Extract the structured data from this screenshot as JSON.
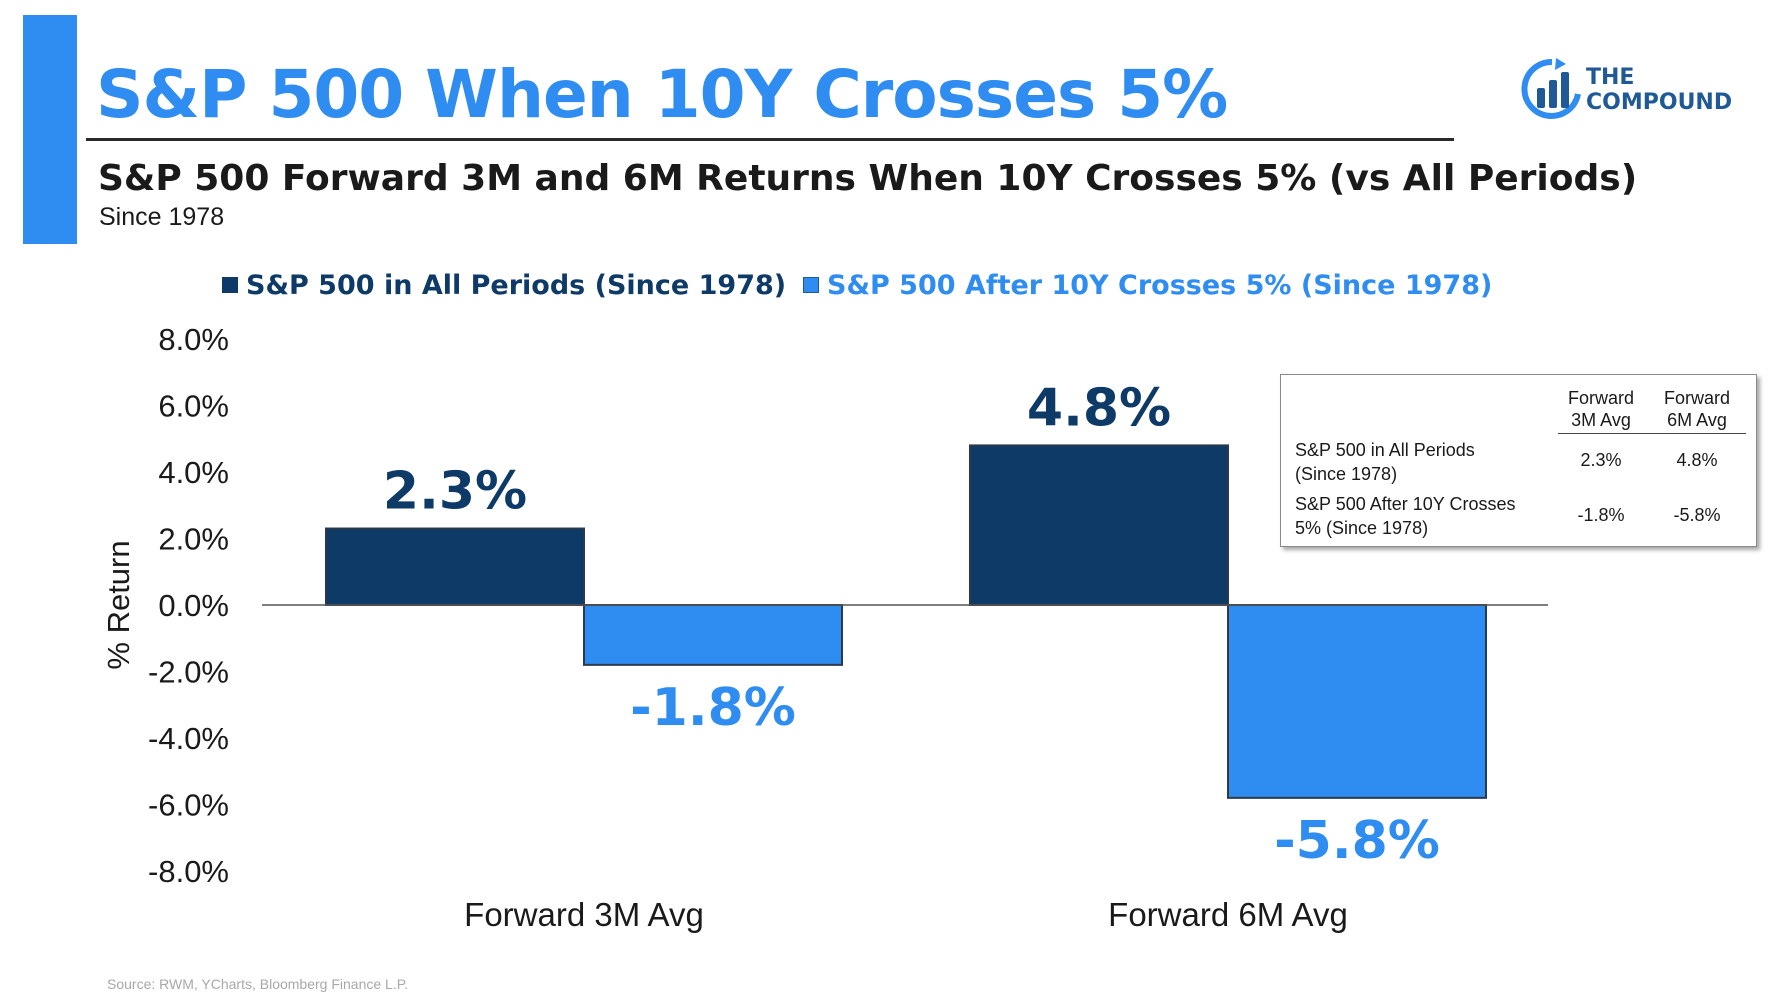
{
  "header": {
    "title": "S&P 500 When 10Y Crosses 5%",
    "subtitle": "S&P 500 Forward 3M and 6M Returns When 10Y Crosses 5% (vs All Periods)",
    "since": "Since 1978"
  },
  "logo": {
    "line1": "THE",
    "line2": "COMPOUND",
    "icon": "bar-chart-circle-icon"
  },
  "colors": {
    "accent": "#2f8cf0",
    "dark_series": "#0d3a66",
    "light_series": "#2f8cf0"
  },
  "legend": {
    "all_periods": "S&P 500 in All Periods (Since 1978)",
    "after_cross": "S&P 500 After 10Y Crosses 5% (Since 1978)"
  },
  "chart_data": {
    "type": "bar",
    "categories": [
      "Forward 3M Avg",
      "Forward 6M Avg"
    ],
    "series": [
      {
        "name": "S&P 500 in All Periods (Since 1978)",
        "values": [
          2.3,
          4.8
        ],
        "labels": [
          "2.3%",
          "4.8%"
        ],
        "color": "#0d3a66"
      },
      {
        "name": "S&P 500 After 10Y Crosses 5% (Since 1978)",
        "values": [
          -1.8,
          -5.8
        ],
        "labels": [
          "-1.8%",
          "-5.8%"
        ],
        "color": "#2f8cf0"
      }
    ],
    "ylabel": "% Return",
    "xlabel": "",
    "ylim": [
      -8,
      8
    ],
    "yticks": [
      "8.0%",
      "6.0%",
      "4.0%",
      "2.0%",
      "0.0%",
      "-2.0%",
      "-4.0%",
      "-6.0%",
      "-8.0%"
    ],
    "ytick_values": [
      8,
      6,
      4,
      2,
      0,
      -2,
      -4,
      -6,
      -8
    ],
    "grid": false,
    "legend_position": "top"
  },
  "table": {
    "headers": [
      "Forward\n3M Avg",
      "Forward\n6M Avg"
    ],
    "rows": [
      {
        "label": "S&P 500 in All Periods\n(Since 1978)",
        "values": [
          "2.3%",
          "4.8%"
        ]
      },
      {
        "label": "S&P 500 After 10Y Crosses\n5% (Since 1978)",
        "values": [
          "-1.8%",
          "-5.8%"
        ]
      }
    ]
  },
  "source": "Source: RWM, YCharts, Bloomberg Finance L.P."
}
